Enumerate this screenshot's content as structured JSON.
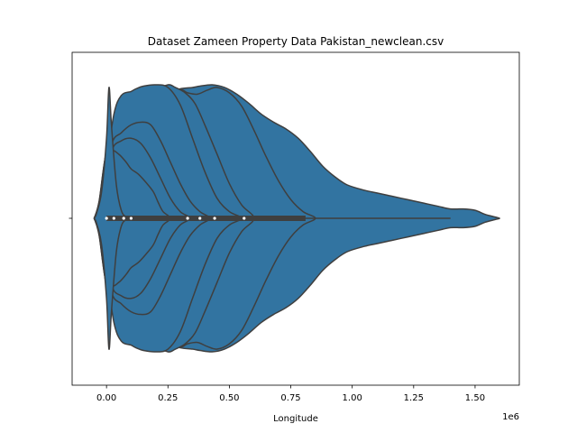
{
  "chart_data": {
    "type": "violin",
    "title": "Dataset Zameen Property Data Pakistan_newclean.csv",
    "xlabel": "Longitude",
    "ylabel": "",
    "x_offset_label": "1e6",
    "xlim": [
      -0.14,
      1.68
    ],
    "x_ticks": [
      0.0,
      0.25,
      0.5,
      0.75,
      1.0,
      1.25,
      1.5
    ],
    "x_tick_labels": [
      "0.00",
      "0.25",
      "0.50",
      "0.75",
      "1.00",
      "1.25",
      "1.50"
    ],
    "colors": {
      "fill": "#3274a1",
      "line": "#3f3f3f",
      "median": "#ffffff"
    },
    "box": {
      "whisker_low": 0.0,
      "q1": 0.0,
      "q3": 0.81,
      "whisker_high": 1.4
    },
    "medians": [
      0.0,
      0.03,
      0.07,
      0.1,
      0.33,
      0.38,
      0.44,
      0.56
    ],
    "violins": [
      {
        "points": [
          [
            -0.05,
            0.0
          ],
          [
            -0.04,
            0.04
          ],
          [
            -0.02,
            0.2
          ],
          [
            0.0,
            0.6
          ],
          [
            0.01,
            0.98
          ],
          [
            0.02,
            0.7
          ],
          [
            0.04,
            0.25
          ],
          [
            0.06,
            0.06
          ],
          [
            0.08,
            0.01
          ],
          [
            0.1,
            0.0
          ]
        ]
      },
      {
        "points": [
          [
            -0.05,
            0.0
          ],
          [
            -0.02,
            0.12
          ],
          [
            0.0,
            0.36
          ],
          [
            0.02,
            0.5
          ],
          [
            0.05,
            0.48
          ],
          [
            0.08,
            0.42
          ],
          [
            0.1,
            0.37
          ],
          [
            0.13,
            0.33
          ],
          [
            0.16,
            0.27
          ],
          [
            0.19,
            0.2
          ],
          [
            0.21,
            0.12
          ],
          [
            0.23,
            0.05
          ],
          [
            0.26,
            0.0
          ]
        ]
      },
      {
        "points": [
          [
            -0.05,
            0.0
          ],
          [
            -0.02,
            0.13
          ],
          [
            0.02,
            0.5
          ],
          [
            0.06,
            0.58
          ],
          [
            0.1,
            0.6
          ],
          [
            0.14,
            0.56
          ],
          [
            0.18,
            0.45
          ],
          [
            0.22,
            0.3
          ],
          [
            0.26,
            0.15
          ],
          [
            0.3,
            0.05
          ],
          [
            0.34,
            0.0
          ]
        ]
      },
      {
        "points": [
          [
            -0.05,
            0.0
          ],
          [
            -0.02,
            0.14
          ],
          [
            0.02,
            0.55
          ],
          [
            0.06,
            0.64
          ],
          [
            0.1,
            0.7
          ],
          [
            0.14,
            0.72
          ],
          [
            0.18,
            0.7
          ],
          [
            0.22,
            0.58
          ],
          [
            0.26,
            0.42
          ],
          [
            0.3,
            0.26
          ],
          [
            0.34,
            0.13
          ],
          [
            0.38,
            0.05
          ],
          [
            0.42,
            0.0
          ]
        ]
      },
      {
        "points": [
          [
            -0.05,
            0.0
          ],
          [
            -0.03,
            0.1
          ],
          [
            0.0,
            0.4
          ],
          [
            0.03,
            0.78
          ],
          [
            0.06,
            0.92
          ],
          [
            0.1,
            0.95
          ],
          [
            0.12,
            0.97
          ],
          [
            0.15,
            0.99
          ],
          [
            0.2,
            1.0
          ],
          [
            0.25,
            0.98
          ],
          [
            0.3,
            0.85
          ],
          [
            0.35,
            0.6
          ],
          [
            0.4,
            0.35
          ],
          [
            0.45,
            0.15
          ],
          [
            0.5,
            0.05
          ],
          [
            0.55,
            0.0
          ]
        ]
      },
      {
        "points": [
          [
            -0.05,
            0.0
          ],
          [
            -0.03,
            0.12
          ],
          [
            0.0,
            0.48
          ],
          [
            0.05,
            0.66
          ],
          [
            0.1,
            0.74
          ],
          [
            0.15,
            0.84
          ],
          [
            0.2,
            0.95
          ],
          [
            0.25,
            1.0
          ],
          [
            0.28,
            0.98
          ],
          [
            0.32,
            0.94
          ],
          [
            0.36,
            0.86
          ],
          [
            0.4,
            0.7
          ],
          [
            0.45,
            0.48
          ],
          [
            0.5,
            0.26
          ],
          [
            0.55,
            0.1
          ],
          [
            0.6,
            0.0
          ]
        ]
      },
      {
        "points": [
          [
            -0.05,
            0.0
          ],
          [
            -0.03,
            0.12
          ],
          [
            0.0,
            0.5
          ],
          [
            0.05,
            0.68
          ],
          [
            0.1,
            0.76
          ],
          [
            0.15,
            0.8
          ],
          [
            0.2,
            0.84
          ],
          [
            0.25,
            0.88
          ],
          [
            0.3,
            0.96
          ],
          [
            0.33,
            0.94
          ],
          [
            0.37,
            0.93
          ],
          [
            0.41,
            0.96
          ],
          [
            0.45,
            0.98
          ],
          [
            0.5,
            0.94
          ],
          [
            0.55,
            0.84
          ],
          [
            0.6,
            0.66
          ],
          [
            0.65,
            0.46
          ],
          [
            0.7,
            0.28
          ],
          [
            0.75,
            0.14
          ],
          [
            0.8,
            0.05
          ],
          [
            0.85,
            0.0
          ]
        ]
      },
      {
        "points": [
          [
            -0.05,
            0.0
          ],
          [
            -0.03,
            0.13
          ],
          [
            0.0,
            0.5
          ],
          [
            0.05,
            0.7
          ],
          [
            0.1,
            0.8
          ],
          [
            0.15,
            0.86
          ],
          [
            0.2,
            0.9
          ],
          [
            0.25,
            0.94
          ],
          [
            0.3,
            0.97
          ],
          [
            0.35,
            0.98
          ],
          [
            0.38,
            0.99
          ],
          [
            0.43,
            1.0
          ],
          [
            0.48,
            0.98
          ],
          [
            0.53,
            0.93
          ],
          [
            0.58,
            0.86
          ],
          [
            0.63,
            0.78
          ],
          [
            0.68,
            0.72
          ],
          [
            0.73,
            0.67
          ],
          [
            0.78,
            0.6
          ],
          [
            0.83,
            0.5
          ],
          [
            0.88,
            0.39
          ],
          [
            0.93,
            0.31
          ],
          [
            0.98,
            0.25
          ],
          [
            1.05,
            0.21
          ],
          [
            1.1,
            0.19
          ],
          [
            1.15,
            0.17
          ],
          [
            1.2,
            0.15
          ],
          [
            1.25,
            0.13
          ],
          [
            1.3,
            0.11
          ],
          [
            1.35,
            0.09
          ],
          [
            1.4,
            0.07
          ],
          [
            1.45,
            0.07
          ],
          [
            1.5,
            0.06
          ],
          [
            1.54,
            0.03
          ],
          [
            1.58,
            0.01
          ],
          [
            1.6,
            0.0
          ]
        ]
      }
    ]
  }
}
